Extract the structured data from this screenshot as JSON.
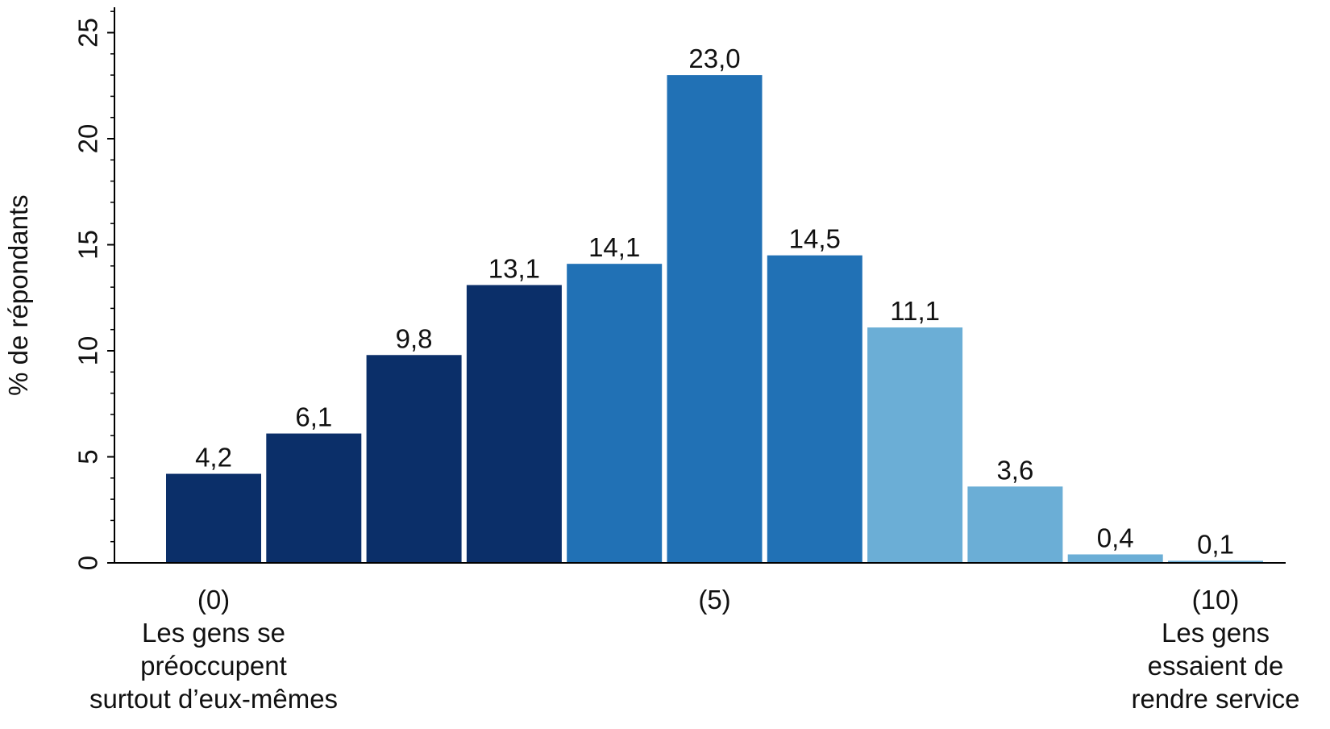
{
  "chart_data": {
    "type": "bar",
    "title": "",
    "ylabel": "% de répondants",
    "xlabel": "",
    "ylim": [
      0,
      26
    ],
    "yticks": [
      0,
      5,
      10,
      15,
      20,
      25
    ],
    "ytick_labels": [
      "0",
      "5",
      "10",
      "15",
      "20",
      "25"
    ],
    "grid": false,
    "legend": "none",
    "categories": [
      "0",
      "1",
      "2",
      "3",
      "4",
      "5",
      "6",
      "7",
      "8",
      "9",
      "10"
    ],
    "values": [
      4.2,
      6.1,
      9.8,
      13.1,
      14.1,
      23.0,
      14.5,
      11.1,
      3.6,
      0.4,
      0.1
    ],
    "value_labels": [
      "4,2",
      "6,1",
      "9,8",
      "13,1",
      "14,1",
      "23,0",
      "14,5",
      "11,1",
      "3,6",
      "0,4",
      "0,1"
    ],
    "colors": [
      "#0b2f69",
      "#0b2f69",
      "#0b2f69",
      "#0b2f69",
      "#2171b5",
      "#2171b5",
      "#2171b5",
      "#6baed6",
      "#6baed6",
      "#6baed6",
      "#6baed6"
    ],
    "x_annotations": [
      {
        "category_index": 0,
        "lines": [
          "(0)",
          "Les gens se",
          "préoccupent",
          "surtout d’eux-mêmes"
        ]
      },
      {
        "category_index": 5,
        "lines": [
          "(5)"
        ]
      },
      {
        "category_index": 10,
        "lines": [
          "(10)",
          "Les gens",
          "essaient de",
          "rendre service"
        ]
      }
    ]
  }
}
